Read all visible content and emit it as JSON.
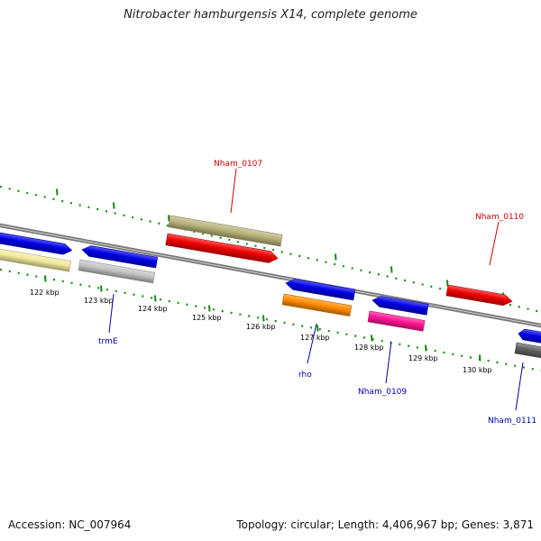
{
  "title": "Nitrobacter hamburgensis X14, complete genome",
  "footer": {
    "accession": "Accession: NC_007964",
    "summary": "Topology: circular; Length: 4,406,967 bp; Genes: 3,871"
  },
  "scale_labels": [
    "122 kbp",
    "123 kbp",
    "124 kbp",
    "125 kbp",
    "126 kbp",
    "127 kbp",
    "128 kbp",
    "129 kbp",
    "130 kbp"
  ],
  "gene_labels": [
    "Nham_0107",
    "Nham_0110",
    "trmE",
    "rho",
    "Nham_0109",
    "Nham_0111"
  ],
  "colors": {
    "backbone": "#7a7a7a",
    "ticks": "#1a8a1a",
    "blue": "#0000e6",
    "red": "#ee0000",
    "olive": "#b8b27a",
    "pale_yellow": "#f2ea9c",
    "light_gray": "#c4c4c4",
    "orange": "#ff8c00",
    "magenta": "#ff1493",
    "dark_gray": "#606060",
    "label_red": "#cc0000",
    "label_blue": "#0000aa"
  }
}
